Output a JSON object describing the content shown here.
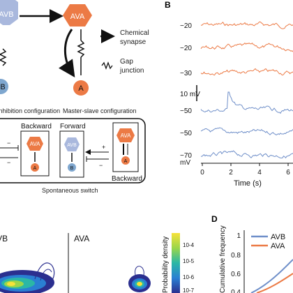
{
  "panel_letters": {
    "b": "B",
    "d": "D"
  },
  "panel_a": {
    "nodes": {
      "avb": "AVB",
      "ava": "AVA",
      "b": "B",
      "a": "A"
    },
    "legend": {
      "chemical": "Chemical\nsynapse",
      "gap": "Gap\njunction"
    },
    "captions": {
      "left": "Mutual inhibition configuration",
      "right": "Master-slave configuration"
    },
    "box_left": {
      "label": "Backward",
      "node": "AVA",
      "node_small": "A",
      "plus": "+",
      "minus": "−"
    },
    "box_right": {
      "forward": "Forward",
      "backward": "Backward",
      "avb": "AVB",
      "b": "B",
      "ava": "AVA",
      "a": "A",
      "plus": "+",
      "minus": "−"
    },
    "switch_caption": "Spontaneous switch"
  },
  "panel_b": {
    "trace_labels": [
      "−20",
      "−20",
      "−30",
      "−50",
      "−50",
      "−70"
    ],
    "scale_bar": "10 mV",
    "ylabel": "mV",
    "xlabel": "Time (s)",
    "x_ticks": [
      "0",
      "2",
      "4",
      "6"
    ]
  },
  "panel_c": {
    "titles": {
      "left": "AVB",
      "right": "AVA"
    },
    "colorbar_label": "Probability density",
    "colorbar_ticks": [
      "10^-4",
      "10^-5",
      "10^-6",
      "10^-7"
    ]
  },
  "panel_d": {
    "ylabel": "Cumulative frequency",
    "y_ticks": [
      "1",
      "0.8",
      "0.6",
      "0.4"
    ],
    "legend": [
      {
        "name": "AVB",
        "color": "#6f8fc9"
      },
      {
        "name": "AVA",
        "color": "#ec7a45"
      }
    ]
  },
  "colors": {
    "orange": "#ec7a45",
    "blue": "#6f8fc9",
    "avb_fill": "#a9b8dd",
    "b_fill": "#7fa7cf"
  }
}
